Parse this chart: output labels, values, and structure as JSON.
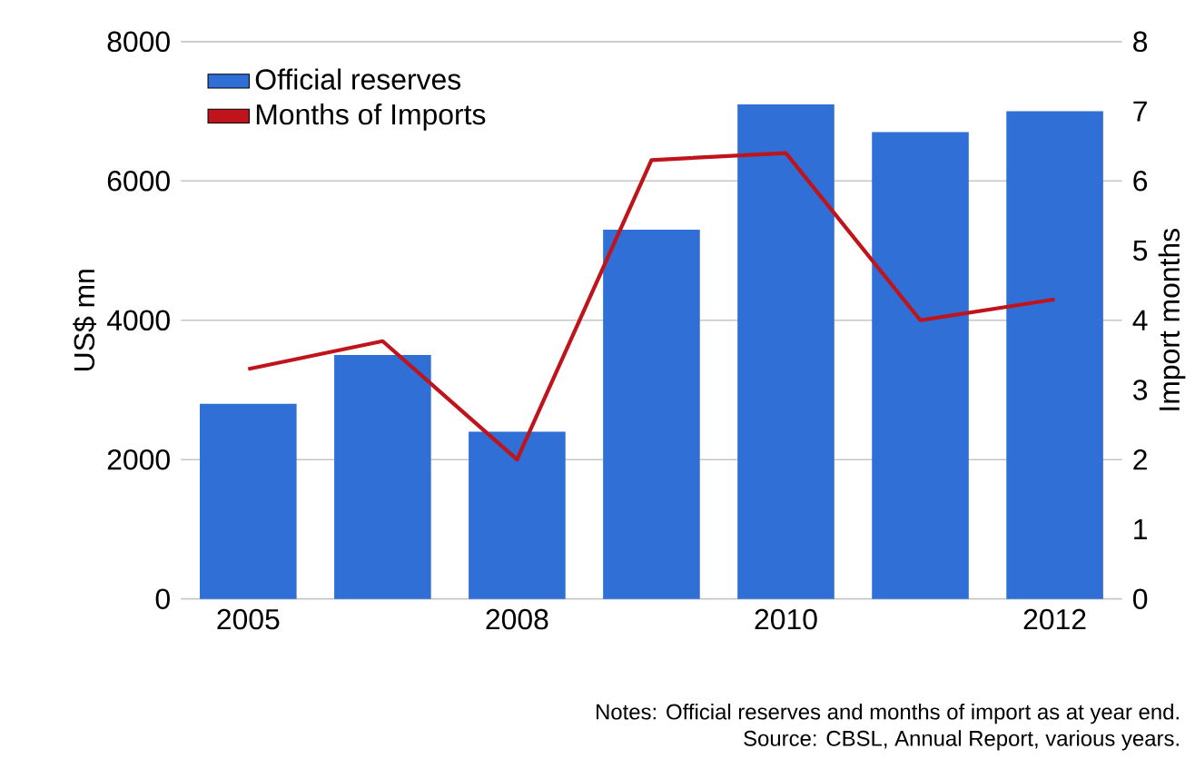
{
  "chart_data": {
    "type": "bar",
    "categories": [
      "2005",
      null,
      "2008",
      null,
      "2010",
      null,
      "2012"
    ],
    "series": [
      {
        "name": "Official reserves",
        "color": "#2f6fd6",
        "values": [
          2800,
          3500,
          2400,
          5300,
          7100,
          6700,
          7000
        ]
      },
      {
        "name": "Months of Imports",
        "type": "line",
        "axis": "y2",
        "color": "#c0141c",
        "values": [
          3.3,
          3.7,
          2.0,
          6.3,
          6.4,
          4.0,
          4.3
        ]
      }
    ],
    "ylabel": "US$ mn",
    "y2label": "Import months",
    "ylim": [
      0,
      8000
    ],
    "yticks": [
      0,
      2000,
      4000,
      6000,
      8000
    ],
    "y2lim": [
      0,
      8
    ],
    "y2ticks": [
      0,
      1,
      2,
      3,
      4,
      5,
      6,
      7,
      8
    ],
    "grid": "y",
    "legend": "top left",
    "marker": "none",
    "line_style": "solid",
    "annotations": [
      "Notes: Official reserves and months of import as at year end.",
      "Source: CBSL, Annual Report, various years."
    ]
  }
}
